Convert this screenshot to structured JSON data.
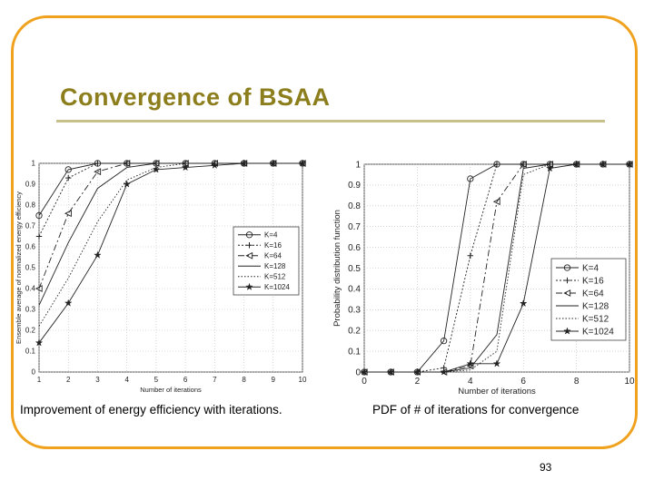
{
  "slide": {
    "title": "Convergence of BSAA",
    "page_number": "93",
    "accent_color": "#f0a21e",
    "title_color": "#8c7e1c"
  },
  "captions": {
    "left": "Improvement of energy efficiency with iterations.",
    "right": "PDF of # of iterations for convergence"
  },
  "chart_data": [
    {
      "type": "line",
      "title": "",
      "xlabel": "Number of iterations",
      "ylabel": "Ensemble average of normalized energy efficiency",
      "xlim": [
        1,
        10
      ],
      "ylim": [
        0,
        1
      ],
      "xticks": [
        1,
        2,
        3,
        4,
        5,
        6,
        7,
        8,
        9,
        10
      ],
      "yticks": [
        0,
        0.1,
        0.2,
        0.3,
        0.4,
        0.5,
        0.6,
        0.7,
        0.8,
        0.9,
        1
      ],
      "grid": true,
      "legend": "center-right",
      "x": [
        1,
        2,
        3,
        4,
        5,
        6,
        7,
        8,
        9,
        10
      ],
      "series": [
        {
          "name": "K=4",
          "marker": "circle",
          "dash": "",
          "values": [
            0.75,
            0.97,
            1,
            1,
            1,
            1,
            1,
            1,
            1,
            1
          ]
        },
        {
          "name": "K=16",
          "marker": "plus",
          "dash": "2,2",
          "values": [
            0.65,
            0.93,
            1,
            1,
            1,
            1,
            1,
            1,
            1,
            1
          ]
        },
        {
          "name": "K=64",
          "marker": "triangle-left",
          "dash": "7,3,2,3",
          "values": [
            0.4,
            0.76,
            0.96,
            1,
            1,
            1,
            1,
            1,
            1,
            1
          ]
        },
        {
          "name": "K=128",
          "marker": "none",
          "dash": "",
          "values": [
            0.32,
            0.62,
            0.88,
            0.98,
            1,
            1,
            1,
            1,
            1,
            1
          ]
        },
        {
          "name": "K=512",
          "marker": "none",
          "dash": "1.5,2",
          "values": [
            0.22,
            0.45,
            0.72,
            0.92,
            0.98,
            1,
            1,
            1,
            1,
            1
          ]
        },
        {
          "name": "K=1024",
          "marker": "star",
          "dash": "",
          "values": [
            0.14,
            0.33,
            0.56,
            0.9,
            0.97,
            0.98,
            0.99,
            1,
            1,
            1
          ]
        }
      ]
    },
    {
      "type": "line",
      "title": "",
      "xlabel": "Number of iterations",
      "ylabel": "Probability distribution function",
      "xlim": [
        0,
        10
      ],
      "ylim": [
        0,
        1
      ],
      "xticks": [
        0,
        2,
        4,
        6,
        8,
        10
      ],
      "yticks": [
        0,
        0.1,
        0.2,
        0.3,
        0.4,
        0.5,
        0.6,
        0.7,
        0.8,
        0.9,
        1
      ],
      "grid": true,
      "legend": "center-right",
      "x": [
        0,
        1,
        2,
        3,
        4,
        5,
        6,
        7,
        8,
        9,
        10
      ],
      "series": [
        {
          "name": "K=4",
          "marker": "circle",
          "dash": "",
          "values": [
            0,
            0,
            0,
            0.15,
            0.93,
            1,
            1,
            1,
            1,
            1,
            1
          ]
        },
        {
          "name": "K=16",
          "marker": "plus",
          "dash": "2,2",
          "values": [
            0,
            0,
            0,
            0.02,
            0.56,
            1,
            1,
            1,
            1,
            1,
            1
          ]
        },
        {
          "name": "K=64",
          "marker": "triangle-left",
          "dash": "7,3,2,3",
          "values": [
            0,
            0,
            0,
            0,
            0.03,
            0.82,
            1,
            1,
            1,
            1,
            1
          ]
        },
        {
          "name": "K=128",
          "marker": "none",
          "dash": "",
          "values": [
            0,
            0,
            0,
            0,
            0.02,
            0.18,
            0.98,
            1,
            1,
            1,
            1
          ]
        },
        {
          "name": "K=512",
          "marker": "none",
          "dash": "1.5,2",
          "values": [
            0,
            0,
            0,
            0,
            0.01,
            0.1,
            0.95,
            1,
            1,
            1,
            1
          ]
        },
        {
          "name": "K=1024",
          "marker": "star",
          "dash": "",
          "values": [
            0,
            0,
            0,
            0,
            0.04,
            0.04,
            0.33,
            0.98,
            1,
            1,
            1
          ]
        }
      ]
    }
  ]
}
